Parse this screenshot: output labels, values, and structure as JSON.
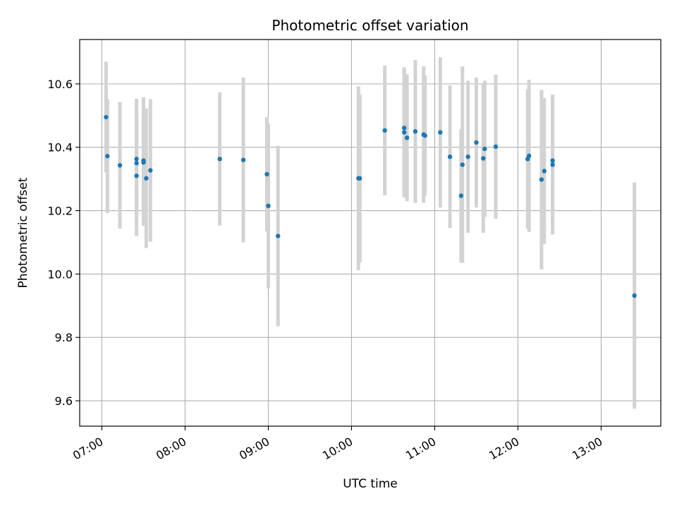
{
  "chart_data": {
    "type": "scatter",
    "title": "Photometric offset variation",
    "xlabel": "UTC time",
    "ylabel": "Photometric offset",
    "xlim": [
      "06:44",
      "13:43"
    ],
    "ylim": [
      9.52,
      10.74
    ],
    "x_ticks": [
      "07:00",
      "08:00",
      "09:00",
      "10:00",
      "11:00",
      "12:00",
      "13:00"
    ],
    "y_ticks": [
      9.6,
      9.8,
      10.0,
      10.2,
      10.4,
      10.6
    ],
    "y_tick_labels": [
      "9.6",
      "9.8",
      "10.0",
      "10.2",
      "10.4",
      "10.6"
    ],
    "x_tick_rotation": 30,
    "grid": true,
    "colors": {
      "point": "#1f77b4",
      "errorbar": "#d3d3d3",
      "grid": "#b0b0b0"
    },
    "points": [
      {
        "x": "07:03",
        "y": 10.495,
        "err": 0.175
      },
      {
        "x": "07:04",
        "y": 10.372,
        "err": 0.18
      },
      {
        "x": "07:13",
        "y": 10.343,
        "err": 0.2
      },
      {
        "x": "07:25",
        "y": 10.363,
        "err": 0.19
      },
      {
        "x": "07:25",
        "y": 10.35,
        "err": 0.18
      },
      {
        "x": "07:25",
        "y": 10.31,
        "err": 0.19
      },
      {
        "x": "07:30",
        "y": 10.358,
        "err": 0.2
      },
      {
        "x": "07:30",
        "y": 10.352,
        "err": 0.2
      },
      {
        "x": "07:32",
        "y": 10.302,
        "err": 0.22
      },
      {
        "x": "07:35",
        "y": 10.327,
        "err": 0.225
      },
      {
        "x": "08:25",
        "y": 10.363,
        "err": 0.21
      },
      {
        "x": "08:42",
        "y": 10.36,
        "err": 0.26
      },
      {
        "x": "08:59",
        "y": 10.315,
        "err": 0.18
      },
      {
        "x": "09:00",
        "y": 10.215,
        "err": 0.26
      },
      {
        "x": "09:07",
        "y": 10.12,
        "err": 0.285
      },
      {
        "x": "10:05",
        "y": 10.302,
        "err": 0.29
      },
      {
        "x": "10:06",
        "y": 10.302,
        "err": 0.265
      },
      {
        "x": "10:24",
        "y": 10.453,
        "err": 0.205
      },
      {
        "x": "10:38",
        "y": 10.447,
        "err": 0.205
      },
      {
        "x": "10:38",
        "y": 10.461,
        "err": 0.19
      },
      {
        "x": "10:40",
        "y": 10.43,
        "err": 0.2
      },
      {
        "x": "10:46",
        "y": 10.45,
        "err": 0.225
      },
      {
        "x": "10:52",
        "y": 10.44,
        "err": 0.215
      },
      {
        "x": "10:53",
        "y": 10.437,
        "err": 0.19
      },
      {
        "x": "11:04",
        "y": 10.447,
        "err": 0.237
      },
      {
        "x": "11:11",
        "y": 10.37,
        "err": 0.225
      },
      {
        "x": "11:19",
        "y": 10.247,
        "err": 0.21
      },
      {
        "x": "11:20",
        "y": 10.345,
        "err": 0.31
      },
      {
        "x": "11:24",
        "y": 10.37,
        "err": 0.24
      },
      {
        "x": "11:30",
        "y": 10.415,
        "err": 0.205
      },
      {
        "x": "11:35",
        "y": 10.365,
        "err": 0.235
      },
      {
        "x": "11:36",
        "y": 10.395,
        "err": 0.215
      },
      {
        "x": "11:44",
        "y": 10.402,
        "err": 0.227
      },
      {
        "x": "12:07",
        "y": 10.363,
        "err": 0.22
      },
      {
        "x": "12:08",
        "y": 10.373,
        "err": 0.24
      },
      {
        "x": "12:17",
        "y": 10.298,
        "err": 0.283
      },
      {
        "x": "12:19",
        "y": 10.325,
        "err": 0.23
      },
      {
        "x": "12:25",
        "y": 10.358,
        "err": 0.208
      },
      {
        "x": "12:25",
        "y": 10.345,
        "err": 0.22
      },
      {
        "x": "13:24",
        "y": 9.932,
        "err": 0.357
      }
    ]
  }
}
